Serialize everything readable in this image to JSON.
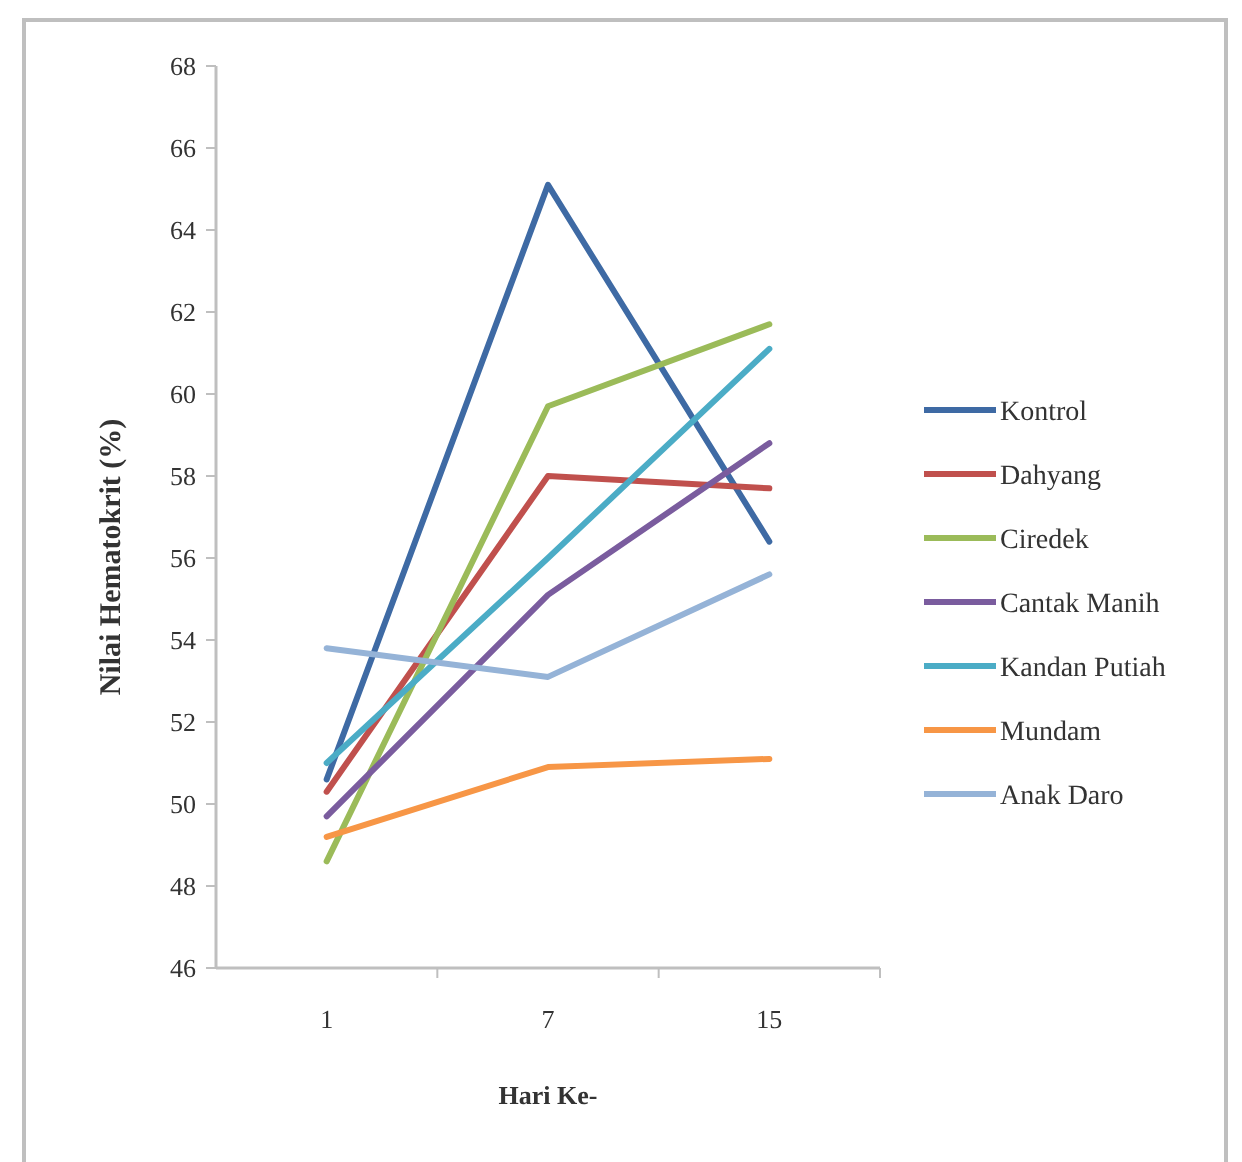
{
  "chart_data": {
    "type": "line",
    "xlabel": "Hari Ke-",
    "ylabel": "Nilai Hematokrit (%)",
    "categories": [
      "1",
      "7",
      "15"
    ],
    "ylim": [
      46,
      68
    ],
    "yticks": [
      46,
      48,
      50,
      52,
      54,
      56,
      58,
      60,
      62,
      64,
      66,
      68
    ],
    "grid": false,
    "legend": "right",
    "marker": "none",
    "line_style": "solid",
    "series": [
      {
        "name": "Kontrol",
        "color": "#3e6aa4",
        "values": [
          50.6,
          65.1,
          56.4
        ]
      },
      {
        "name": "Dahyang",
        "color": "#c0504d",
        "values": [
          50.3,
          58.0,
          57.7
        ]
      },
      {
        "name": "Ciredek",
        "color": "#9bbb59",
        "values": [
          48.6,
          59.7,
          61.7
        ]
      },
      {
        "name": "Cantak Manih",
        "color": "#7a5c9e",
        "values": [
          49.7,
          55.1,
          58.8
        ]
      },
      {
        "name": "Kandan Putiah",
        "color": "#4bacc6",
        "values": [
          51.0,
          56.0,
          61.1
        ]
      },
      {
        "name": "Mundam",
        "color": "#f79646",
        "values": [
          49.2,
          50.9,
          51.1
        ]
      },
      {
        "name": "Anak Daro",
        "color": "#95b3d7",
        "values": [
          53.8,
          53.1,
          55.6
        ]
      }
    ]
  }
}
